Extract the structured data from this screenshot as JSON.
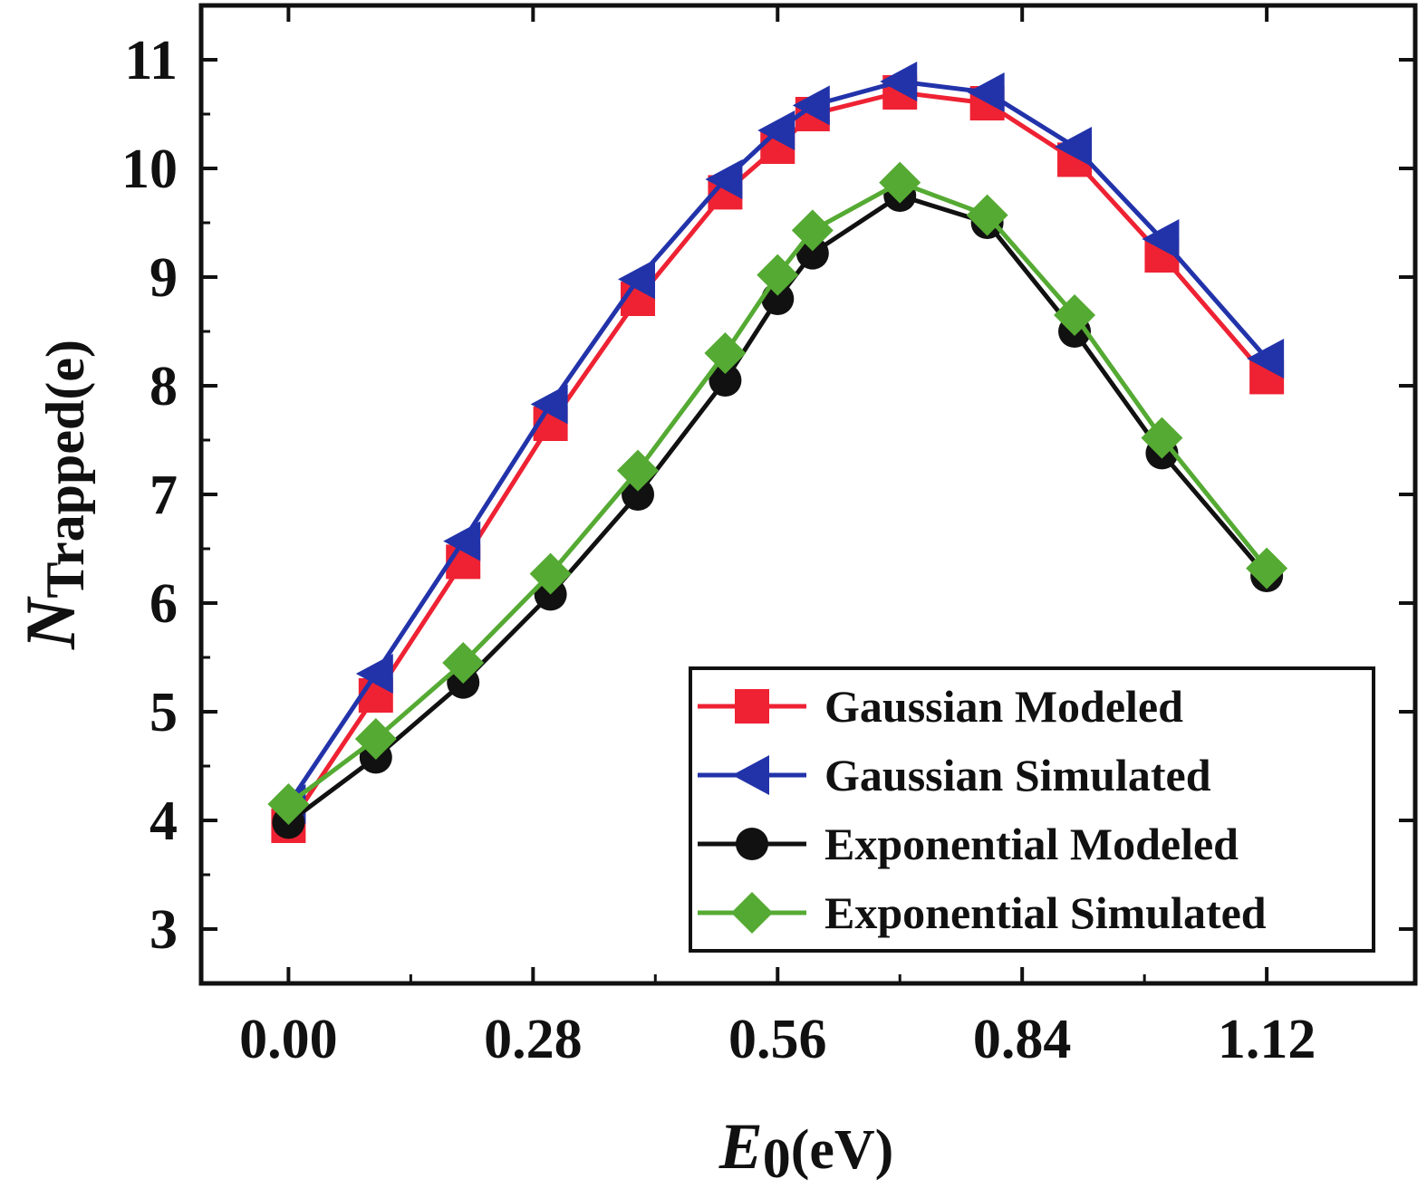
{
  "chart_data": {
    "type": "line",
    "title": "",
    "xlabel": {
      "main": "E",
      "sub": "0",
      "unit": "(eV)"
    },
    "ylabel": {
      "main": "N",
      "sub": "Trapped(e)"
    },
    "xlim": [
      -0.1,
      1.29
    ],
    "ylim": [
      2.5,
      11.5
    ],
    "x_ticks": [
      0.0,
      0.28,
      0.56,
      0.84,
      1.12
    ],
    "x_tick_labels": [
      "0.00",
      "0.28",
      "0.56",
      "0.84",
      "1.12"
    ],
    "y_ticks": [
      3,
      4,
      5,
      6,
      7,
      8,
      9,
      10,
      11
    ],
    "y_tick_labels": [
      "3",
      "4",
      "5",
      "6",
      "7",
      "8",
      "9",
      "10",
      "11"
    ],
    "grid": false,
    "legend_position": "bottom-right",
    "series": [
      {
        "name": "Gaussian Modeled",
        "color": "#ee2233",
        "marker": "square",
        "x": [
          0.0,
          0.1,
          0.2,
          0.3,
          0.4,
          0.5,
          0.56,
          0.6,
          0.7,
          0.8,
          0.9,
          1.0,
          1.12
        ],
        "y": [
          3.95,
          5.15,
          6.38,
          7.65,
          8.8,
          9.78,
          10.2,
          10.5,
          10.7,
          10.6,
          10.08,
          9.2,
          8.08
        ]
      },
      {
        "name": "Gaussian Simulated",
        "color": "#2233aa",
        "marker": "triangle-left",
        "x": [
          0.0,
          0.1,
          0.2,
          0.3,
          0.4,
          0.5,
          0.56,
          0.6,
          0.7,
          0.8,
          0.9,
          1.0,
          1.12
        ],
        "y": [
          4.15,
          5.35,
          6.57,
          7.83,
          8.98,
          9.9,
          10.35,
          10.58,
          10.8,
          10.7,
          10.2,
          9.35,
          8.25
        ]
      },
      {
        "name": "Exponential Modeled",
        "color": "#111111",
        "marker": "circle",
        "x": [
          0.0,
          0.1,
          0.2,
          0.3,
          0.4,
          0.5,
          0.56,
          0.6,
          0.7,
          0.8,
          0.9,
          1.0,
          1.12
        ],
        "y": [
          3.98,
          4.58,
          5.27,
          6.08,
          7.0,
          8.05,
          8.8,
          9.22,
          9.75,
          9.5,
          8.5,
          7.38,
          6.25
        ]
      },
      {
        "name": "Exponential Simulated",
        "color": "#55aa33",
        "marker": "diamond",
        "x": [
          0.0,
          0.1,
          0.2,
          0.3,
          0.4,
          0.5,
          0.56,
          0.6,
          0.7,
          0.8,
          0.9,
          1.0,
          1.12
        ],
        "y": [
          4.15,
          4.75,
          5.45,
          6.27,
          7.22,
          8.3,
          9.02,
          9.43,
          9.87,
          9.57,
          8.65,
          7.52,
          6.32
        ]
      }
    ]
  }
}
